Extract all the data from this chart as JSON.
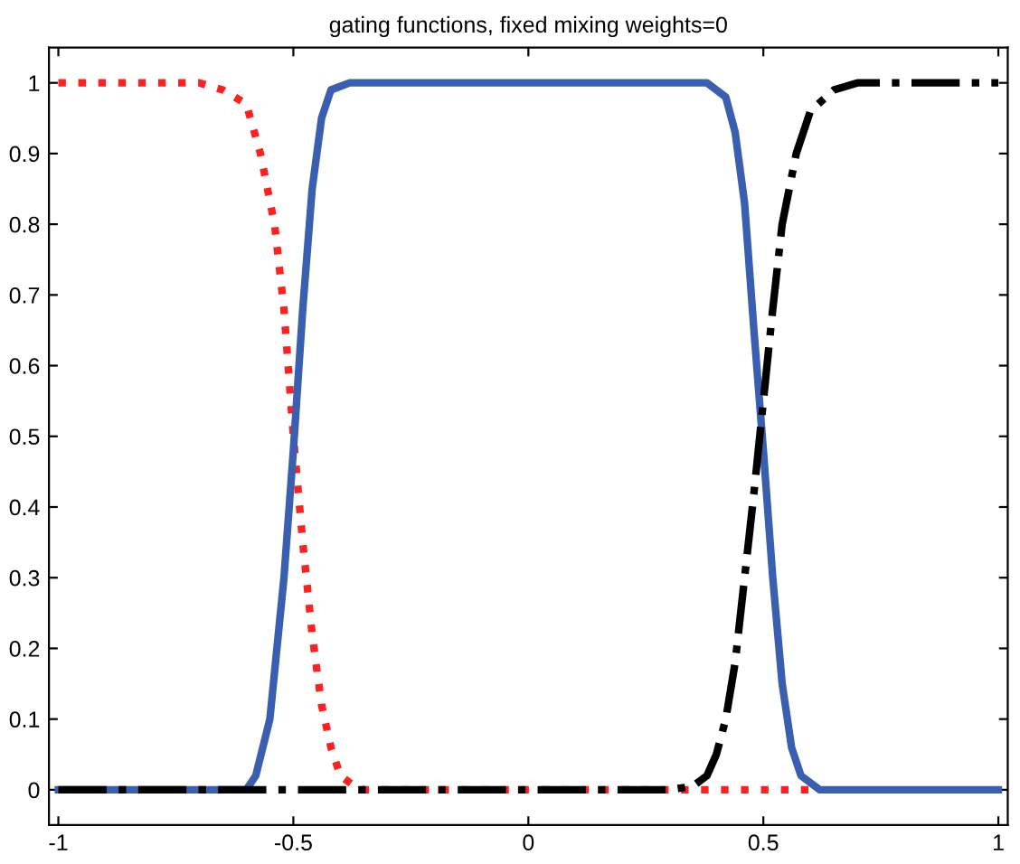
{
  "chart_data": {
    "type": "line",
    "title": "gating functions, fixed mixing weights=0",
    "xlim": [
      -1.02,
      1.02
    ],
    "xticks": [
      -1,
      -0.5,
      0,
      0.5,
      1
    ],
    "ylim": [
      -0.05,
      1.05
    ],
    "yticks": [
      0,
      0.1,
      0.2,
      0.3,
      0.4,
      0.5,
      0.6,
      0.7,
      0.8,
      0.9,
      1
    ],
    "grid": false,
    "legend": false,
    "series": [
      {
        "color": "#ff2020",
        "line_style": "dotted",
        "x": [
          -1,
          -0.7,
          -0.65,
          -0.6,
          -0.57,
          -0.54,
          -0.52,
          -0.5,
          -0.48,
          -0.46,
          -0.44,
          -0.42,
          -0.4,
          -0.37,
          -0.35,
          0.6
        ],
        "values": [
          1,
          1,
          0.99,
          0.97,
          0.9,
          0.8,
          0.68,
          0.5,
          0.35,
          0.22,
          0.12,
          0.06,
          0.02,
          0.005,
          0,
          0
        ]
      },
      {
        "color": "#3a5fb0",
        "line_style": "solid",
        "x": [
          -1,
          -0.6,
          -0.58,
          -0.55,
          -0.52,
          -0.5,
          -0.48,
          -0.46,
          -0.44,
          -0.42,
          -0.38,
          0.38,
          0.42,
          0.44,
          0.46,
          0.48,
          0.5,
          0.52,
          0.54,
          0.56,
          0.58,
          0.62,
          1
        ],
        "values": [
          0,
          0,
          0.02,
          0.1,
          0.3,
          0.48,
          0.68,
          0.85,
          0.95,
          0.99,
          1,
          1,
          0.98,
          0.93,
          0.83,
          0.65,
          0.48,
          0.3,
          0.15,
          0.06,
          0.02,
          0,
          0
        ]
      },
      {
        "color": "#000000",
        "line_style": "dashdot",
        "x": [
          -1,
          0.3,
          0.35,
          0.38,
          0.4,
          0.42,
          0.44,
          0.46,
          0.48,
          0.5,
          0.52,
          0.54,
          0.57,
          0.6,
          0.65,
          0.7,
          1
        ],
        "values": [
          0,
          0,
          0.005,
          0.02,
          0.05,
          0.1,
          0.18,
          0.3,
          0.42,
          0.55,
          0.68,
          0.8,
          0.9,
          0.96,
          0.99,
          1,
          1
        ]
      }
    ]
  }
}
